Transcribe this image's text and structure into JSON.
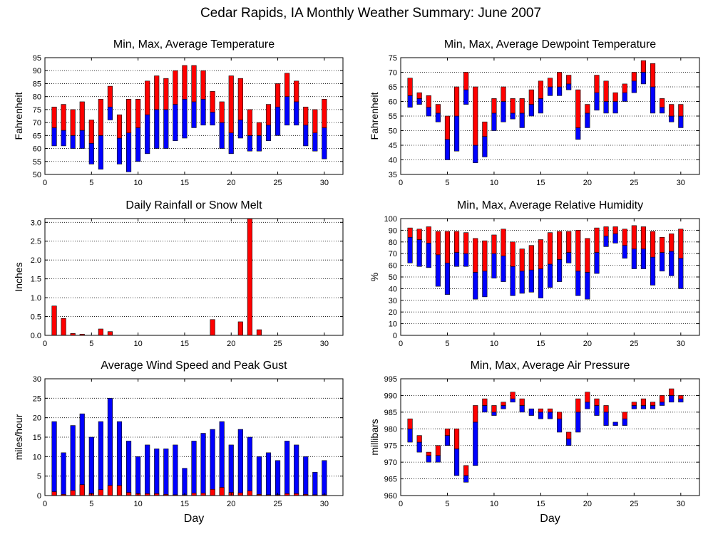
{
  "suptitle": "Cedar Rapids, IA Monthly Weather Summary: June 2007",
  "colors": {
    "red": "#ff0000",
    "blue": "#0000ff",
    "grid": "#000000"
  },
  "chart_data": [
    {
      "id": "temp",
      "type": "bar",
      "title": "Min, Max, Average Temperature",
      "ylabel": "Fahrenheit",
      "xlabel": "",
      "xlim": [
        0,
        32
      ],
      "ylim": [
        50,
        95
      ],
      "xticks": [
        0,
        5,
        10,
        15,
        20,
        25,
        30
      ],
      "yticks": [
        50,
        55,
        60,
        65,
        70,
        75,
        80,
        85,
        90,
        95
      ],
      "grid": true,
      "x": [
        1,
        2,
        3,
        4,
        5,
        6,
        7,
        8,
        9,
        10,
        11,
        12,
        13,
        14,
        15,
        16,
        17,
        18,
        19,
        20,
        21,
        22,
        23,
        24,
        25,
        26,
        27,
        28,
        29,
        30
      ],
      "series": [
        {
          "values_min": [
            61,
            61,
            60,
            60,
            54,
            52,
            71,
            54,
            51,
            55,
            58,
            60,
            60,
            63,
            64,
            68,
            69,
            69,
            60,
            58,
            64,
            59,
            59,
            63,
            65,
            69,
            69,
            61,
            59,
            56
          ]
        },
        {
          "values_avg": [
            68,
            67,
            65,
            67,
            62,
            65,
            76,
            64,
            66,
            68,
            73,
            75,
            75,
            77,
            79,
            78,
            79,
            74,
            70,
            66,
            71,
            65,
            65,
            69,
            76,
            80,
            78,
            69,
            66,
            68
          ]
        },
        {
          "values_max": [
            76,
            77,
            75,
            78,
            71,
            79,
            84,
            73,
            79,
            79,
            86,
            88,
            87,
            90,
            92,
            92,
            90,
            82,
            78,
            88,
            87,
            75,
            70,
            77,
            85,
            89,
            86,
            76,
            75,
            79
          ]
        }
      ]
    },
    {
      "id": "dew",
      "type": "bar",
      "title": "Min, Max, Average Dewpoint Temperature",
      "ylabel": "Fahrenheit",
      "xlabel": "",
      "xlim": [
        0,
        32
      ],
      "ylim": [
        35,
        75
      ],
      "xticks": [
        0,
        5,
        10,
        15,
        20,
        25,
        30
      ],
      "yticks": [
        35,
        40,
        45,
        50,
        55,
        60,
        65,
        70,
        75
      ],
      "grid": true,
      "x": [
        1,
        2,
        3,
        4,
        5,
        6,
        7,
        8,
        9,
        10,
        11,
        12,
        13,
        14,
        15,
        16,
        17,
        18,
        19,
        20,
        21,
        22,
        23,
        24,
        25,
        26,
        27,
        28,
        29,
        30
      ],
      "series": [
        {
          "values_min": [
            58,
            59,
            55,
            53,
            40,
            43,
            59,
            39,
            41,
            50,
            53,
            54,
            51,
            55,
            56,
            62,
            62,
            64,
            47,
            51,
            57,
            56,
            56,
            60,
            63,
            66,
            56,
            56,
            53,
            51
          ]
        },
        {
          "values_avg": [
            62,
            61,
            58,
            56,
            47,
            55,
            64,
            45,
            48,
            56,
            60,
            56,
            56,
            59,
            61,
            65,
            65,
            66,
            51,
            56,
            63,
            60,
            60,
            63,
            67,
            70,
            65,
            58,
            55,
            55
          ]
        },
        {
          "values_max": [
            68,
            63,
            62,
            59,
            55,
            65,
            70,
            65,
            53,
            61,
            65,
            61,
            61,
            64,
            67,
            68,
            70,
            69,
            64,
            59,
            69,
            67,
            63,
            66,
            70,
            74,
            73,
            61,
            59,
            59
          ]
        }
      ]
    },
    {
      "id": "rain",
      "type": "bar",
      "title": "Daily Rainfall or Snow Melt",
      "ylabel": "Inches",
      "xlabel": "",
      "xlim": [
        0,
        32
      ],
      "ylim": [
        0,
        3.1
      ],
      "xticks": [
        0,
        5,
        10,
        15,
        20,
        25,
        30
      ],
      "yticks": [
        0.0,
        0.5,
        1.0,
        1.5,
        2.0,
        2.5,
        3.0
      ],
      "ytick_labels": [
        "0.0",
        "0.5",
        "1.0",
        "1.5",
        "2.0",
        "2.5",
        "3.0"
      ],
      "grid": true,
      "x": [
        1,
        2,
        3,
        4,
        5,
        6,
        7,
        8,
        9,
        10,
        11,
        12,
        13,
        14,
        15,
        16,
        17,
        18,
        19,
        20,
        21,
        22,
        23,
        24,
        25,
        26,
        27,
        28,
        29,
        30
      ],
      "series": [
        {
          "values": [
            0.78,
            0.45,
            0.05,
            0.03,
            0,
            0.17,
            0.1,
            0,
            0,
            0,
            0,
            0,
            0,
            0,
            0,
            0,
            0,
            0.42,
            0,
            0,
            0.36,
            3.1,
            0.15,
            0,
            0,
            0,
            0,
            0,
            0,
            0
          ]
        }
      ]
    },
    {
      "id": "rh",
      "type": "bar",
      "title": "Min, Max, Average Relative Humidity",
      "ylabel": "%",
      "xlabel": "",
      "xlim": [
        0,
        32
      ],
      "ylim": [
        0,
        100
      ],
      "xticks": [
        0,
        5,
        10,
        15,
        20,
        25,
        30
      ],
      "yticks": [
        0,
        10,
        20,
        30,
        40,
        50,
        60,
        70,
        80,
        90,
        100
      ],
      "grid": true,
      "x": [
        1,
        2,
        3,
        4,
        5,
        6,
        7,
        8,
        9,
        10,
        11,
        12,
        13,
        14,
        15,
        16,
        17,
        18,
        19,
        20,
        21,
        22,
        23,
        24,
        25,
        26,
        27,
        28,
        29,
        30
      ],
      "series": [
        {
          "values_min": [
            62,
            59,
            58,
            42,
            35,
            59,
            59,
            31,
            33,
            49,
            46,
            34,
            36,
            37,
            32,
            41,
            46,
            62,
            34,
            31,
            53,
            76,
            79,
            66,
            57,
            57,
            43,
            55,
            51,
            40
          ]
        },
        {
          "values_avg": [
            84,
            82,
            79,
            69,
            62,
            71,
            70,
            54,
            55,
            70,
            68,
            59,
            55,
            56,
            57,
            61,
            65,
            71,
            55,
            54,
            71,
            85,
            87,
            77,
            74,
            74,
            67,
            71,
            72,
            66
          ]
        },
        {
          "values_max": [
            92,
            91,
            93,
            89,
            89,
            89,
            88,
            83,
            81,
            86,
            91,
            80,
            74,
            77,
            82,
            88,
            89,
            89,
            90,
            83,
            92,
            93,
            93,
            91,
            94,
            93,
            89,
            84,
            87,
            91
          ]
        }
      ]
    },
    {
      "id": "wind",
      "type": "bar",
      "title": "Average Wind Speed and Peak Gust",
      "ylabel": "miles/hour",
      "xlabel": "Day",
      "xlim": [
        0,
        32
      ],
      "ylim": [
        0,
        30
      ],
      "xticks": [
        0,
        5,
        10,
        15,
        20,
        25,
        30
      ],
      "yticks": [
        0,
        5,
        10,
        15,
        20,
        25,
        30
      ],
      "grid": true,
      "x": [
        1,
        2,
        3,
        4,
        5,
        6,
        7,
        8,
        9,
        10,
        11,
        12,
        13,
        14,
        15,
        16,
        17,
        18,
        19,
        20,
        21,
        22,
        23,
        24,
        25,
        26,
        27,
        28,
        29,
        30
      ],
      "series": [
        {
          "values_gust": [
            19,
            11,
            18,
            21,
            15,
            19,
            25,
            19,
            14,
            10,
            13,
            12,
            12,
            13,
            7,
            14,
            16,
            17,
            19,
            13,
            17,
            15,
            10,
            11,
            9,
            14,
            13,
            10,
            6,
            9
          ]
        },
        {
          "values_avg": [
            1.0,
            0.3,
            1.3,
            2.8,
            0.5,
            1.5,
            2.6,
            2.6,
            0.8,
            0.5,
            0.5,
            0.5,
            0.3,
            0.2,
            0.2,
            0.6,
            0.6,
            1.6,
            2.1,
            0.8,
            0.7,
            1.2,
            0.3,
            0.2,
            0.2,
            0.5,
            0.5,
            0.3,
            0.2,
            0.2
          ]
        }
      ]
    },
    {
      "id": "pres",
      "type": "bar",
      "title": "Min, Max, Average Air Pressure",
      "ylabel": "millibars",
      "xlabel": "Day",
      "xlim": [
        0,
        32
      ],
      "ylim": [
        960,
        995
      ],
      "xticks": [
        0,
        5,
        10,
        15,
        20,
        25,
        30
      ],
      "yticks": [
        960,
        965,
        970,
        975,
        980,
        985,
        990,
        995
      ],
      "grid": true,
      "x": [
        1,
        2,
        3,
        4,
        5,
        6,
        7,
        8,
        9,
        10,
        11,
        12,
        13,
        14,
        15,
        16,
        17,
        18,
        19,
        20,
        21,
        22,
        23,
        24,
        25,
        26,
        27,
        28,
        29,
        30
      ],
      "series": [
        {
          "values_min": [
            976,
            973,
            970,
            970,
            975,
            966,
            964,
            969,
            985,
            984,
            986,
            988,
            985,
            984,
            983,
            983,
            979,
            975,
            979,
            986,
            984,
            981,
            981,
            981,
            986,
            986,
            986,
            987,
            988,
            988
          ]
        },
        {
          "values_avg": [
            980,
            976,
            972,
            972,
            978,
            974,
            966,
            982,
            987,
            985,
            987,
            989,
            987,
            986,
            985,
            985,
            983,
            977,
            985,
            988,
            987,
            985,
            982,
            983,
            987,
            987,
            987,
            988,
            990,
            989
          ]
        },
        {
          "values_max": [
            983,
            978,
            973,
            975,
            980,
            980,
            969,
            987,
            989,
            987,
            988,
            991,
            989,
            986,
            986,
            986,
            985,
            979,
            989,
            991,
            989,
            987,
            982,
            985,
            988,
            989,
            988,
            990,
            992,
            990
          ]
        }
      ]
    }
  ]
}
